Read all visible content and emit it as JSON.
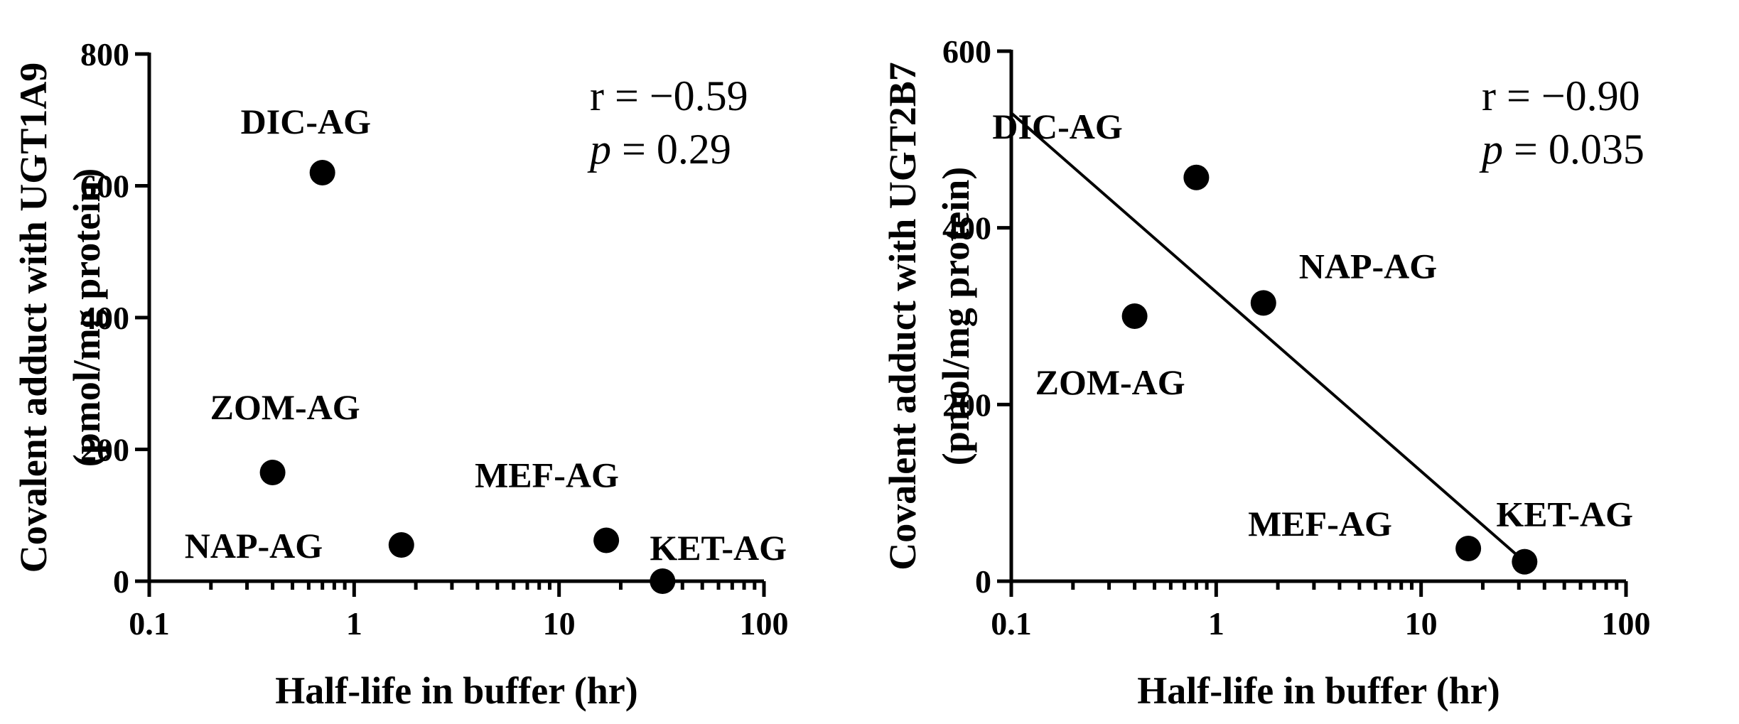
{
  "chart_data": [
    {
      "type": "scatter",
      "xlabel": "Half-life in buffer (hr)",
      "ylabel_line1": "Covalent adduct with UGT1A9",
      "ylabel_line2": "(pmol/mg protein)",
      "x_scale": "log",
      "xlim": [
        0.1,
        100
      ],
      "ylim": [
        0,
        800
      ],
      "x_ticks": [
        0.1,
        1,
        10,
        100
      ],
      "x_tick_labels": [
        "0.1",
        "1",
        "10",
        "100"
      ],
      "y_ticks": [
        0,
        200,
        400,
        600,
        800
      ],
      "y_tick_labels": [
        "0",
        "200",
        "400",
        "600",
        "800"
      ],
      "points": [
        {
          "label": "DIC-AG",
          "x": 0.7,
          "y": 620
        },
        {
          "label": "ZOM-AG",
          "x": 0.4,
          "y": 165
        },
        {
          "label": "NAP-AG",
          "x": 1.7,
          "y": 55
        },
        {
          "label": "MEF-AG",
          "x": 17,
          "y": 62
        },
        {
          "label": "KET-AG",
          "x": 32,
          "y": 0
        }
      ],
      "stats": {
        "r_text": "r = −0.59",
        "p_symbol": "p",
        "p_text": " = 0.29"
      },
      "regression": null
    },
    {
      "type": "scatter",
      "xlabel": "Half-life in buffer (hr)",
      "ylabel_line1": "Covalent adduct with UGT2B7",
      "ylabel_line2": "(pmol/mg protein)",
      "x_scale": "log",
      "xlim": [
        0.1,
        100
      ],
      "ylim": [
        0,
        600
      ],
      "x_ticks": [
        0.1,
        1,
        10,
        100
      ],
      "x_tick_labels": [
        "0.1",
        "1",
        "10",
        "100"
      ],
      "y_ticks": [
        0,
        200,
        400,
        600
      ],
      "y_tick_labels": [
        "0",
        "200",
        "400",
        "600"
      ],
      "points": [
        {
          "label": "DIC-AG",
          "x": 0.8,
          "y": 457
        },
        {
          "label": "ZOM-AG",
          "x": 0.4,
          "y": 300
        },
        {
          "label": "NAP-AG",
          "x": 1.7,
          "y": 315
        },
        {
          "label": "MEF-AG",
          "x": 17,
          "y": 37
        },
        {
          "label": "KET-AG",
          "x": 32,
          "y": 22
        }
      ],
      "stats": {
        "r_text": "r = −0.90",
        "p_symbol": "p",
        "p_text": " = 0.035"
      },
      "regression": {
        "x_start": 0.1,
        "y_start": 530,
        "x_end": 32,
        "y_end": 22
      }
    }
  ]
}
